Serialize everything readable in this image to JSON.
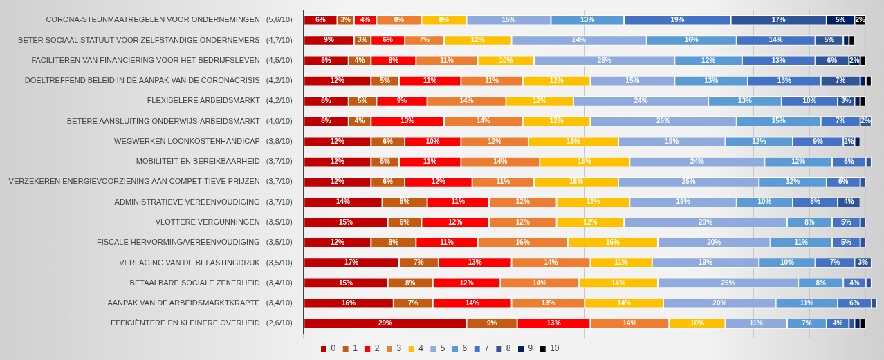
{
  "chart_data": {
    "type": "bar",
    "orientation": "horizontal",
    "stacked": true,
    "categories": [
      "CORONA-STEUNMAATREGELEN VOOR ONDERNEMINGEN   (5,6/10)",
      "BETER SOCIAAL STATUUT VOOR ZELFSTANDIGE ONDERNEMERS   (4,7/10)",
      "FACILITEREN VAN FINANCIERING VOOR HET BEDRIJFSLEVEN   (4,5/10)",
      "DOELTREFFEND BELEID IN DE AANPAK VAN DE CORONACRISIS   (4,2/10)",
      "FLEXIBELERE ARBEIDSMARKT   (4,2/10)",
      "BETERE AANSLUITING ONDERWIJS-ARBEIDSMARKT   (4,0/10)",
      "WEGWERKEN LOONKOSTENHANDICAP   (3,8/10)",
      "MOBILITEIT EN BEREIKBAARHEID   (3,7/10)",
      "VERZEKEREN ENERGIEVOORZIENING AAN COMPETITIEVE PRIJZEN   (3,7/10)",
      "ADMINISTRATIEVE VEREENVOUDIGING   (3,7/10)",
      "VLOTTERE VERGUNNINGEN   (3,5/10)",
      "FISCALE HERVORMING/VEREENVOUDIGING   (3,5/10)",
      "VERLAGING VAN DE BELASTINGDRUK   (3,5/10)",
      "BETAALBARE SOCIALE ZEKERHEID   (3,4/10)",
      "AANPAK VAN DE ARBEIDSMARKTKRAPTE   (3,4/10)",
      "EFFICIËNTERE EN KLEINERE OVERHEID   (2,6/10)"
    ],
    "series": [
      {
        "name": "0",
        "color": "#c00000",
        "values": [
          6,
          9,
          8,
          12,
          8,
          8,
          12,
          12,
          12,
          14,
          15,
          12,
          17,
          15,
          16,
          29
        ],
        "value_labels": [
          "6%",
          "9%",
          "8%",
          "12%",
          "8%",
          "8%",
          "12%",
          "12%",
          "12%",
          "14%",
          "15%",
          "12%",
          "17%",
          "15%",
          "16%",
          "29%"
        ]
      },
      {
        "name": "1",
        "color": "#c55a11",
        "values": [
          3,
          3,
          4,
          5,
          5,
          4,
          6,
          5,
          6,
          8,
          6,
          8,
          7,
          8,
          7,
          9
        ],
        "value_labels": [
          "3%",
          "3%",
          "4%",
          "5%",
          "5%",
          "4%",
          "6%",
          "5%",
          "6%",
          "8%",
          "6%",
          "8%",
          "7%",
          "8%",
          "7%",
          "9%"
        ]
      },
      {
        "name": "2",
        "color": "#ff0000",
        "values": [
          4,
          6,
          8,
          11,
          9,
          13,
          10,
          11,
          12,
          11,
          12,
          11,
          13,
          12,
          14,
          13
        ],
        "value_labels": [
          "4%",
          "6%",
          "8%",
          "11%",
          "9%",
          "13%",
          "10%",
          "11%",
          "12%",
          "11%",
          "12%",
          "11%",
          "13%",
          "12%",
          "14%",
          "13%"
        ]
      },
      {
        "name": "3",
        "color": "#ed7d31",
        "values": [
          8,
          7,
          11,
          11,
          14,
          14,
          12,
          14,
          11,
          12,
          12,
          16,
          14,
          14,
          13,
          14
        ],
        "value_labels": [
          "8%",
          "7%",
          "11%",
          "11%",
          "14%",
          "14%",
          "12%",
          "14%",
          "11%",
          "12%",
          "12%",
          "16%",
          "14%",
          "14%",
          "13%",
          "14%"
        ]
      },
      {
        "name": "4",
        "color": "#ffc000",
        "values": [
          8,
          12,
          10,
          12,
          12,
          12,
          16,
          16,
          15,
          13,
          12,
          16,
          11,
          14,
          14,
          10
        ],
        "value_labels": [
          "8%",
          "12%",
          "10%",
          "12%",
          "12%",
          "12%",
          "16%",
          "16%",
          "15%",
          "13%",
          "12%",
          "16%",
          "11%",
          "14%",
          "14%",
          "10%"
        ]
      },
      {
        "name": "5",
        "color": "#8faadc",
        "values": [
          15,
          24,
          25,
          15,
          24,
          26,
          19,
          24,
          25,
          19,
          29,
          20,
          19,
          25,
          20,
          11
        ],
        "value_labels": [
          "15%",
          "24%",
          "25%",
          "15%",
          "24%",
          "26%",
          "19%",
          "24%",
          "25%",
          "19%",
          "29%",
          "20%",
          "19%",
          "25%",
          "20%",
          "11%"
        ]
      },
      {
        "name": "6",
        "color": "#5b9bd5",
        "values": [
          13,
          16,
          12,
          13,
          13,
          15,
          12,
          12,
          12,
          10,
          8,
          11,
          10,
          8,
          11,
          7
        ],
        "value_labels": [
          "13%",
          "16%",
          "12%",
          "13%",
          "13%",
          "15%",
          "12%",
          "12%",
          "12%",
          "10%",
          "8%",
          "11%",
          "10%",
          "8%",
          "11%",
          "7%"
        ]
      },
      {
        "name": "7",
        "color": "#4472c4",
        "values": [
          19,
          14,
          13,
          13,
          10,
          7,
          9,
          6,
          6,
          8,
          5,
          5,
          7,
          4,
          6,
          4
        ],
        "value_labels": [
          "19%",
          "14%",
          "13%",
          "13%",
          "10%",
          "7%",
          "9%",
          "6%",
          "6%",
          "8%",
          "5%",
          "5%",
          "7%",
          "4%",
          "6%",
          "4%"
        ]
      },
      {
        "name": "8",
        "color": "#2f5597",
        "values": [
          17,
          5,
          6,
          7,
          3,
          2,
          2,
          1,
          1,
          4,
          1,
          1,
          3,
          1,
          1,
          1
        ],
        "value_labels": [
          "17%",
          "5%",
          "6%",
          "7%",
          "3%",
          "2%",
          "2%",
          null,
          null,
          "4%",
          null,
          null,
          "3%",
          null,
          null,
          null
        ]
      },
      {
        "name": "9",
        "color": "#002060",
        "values": [
          5,
          1,
          2,
          1,
          1,
          0,
          1,
          0,
          0,
          0,
          0,
          0,
          0,
          0,
          0,
          1
        ],
        "value_labels": [
          "5%",
          null,
          "2%",
          null,
          null,
          null,
          null,
          null,
          null,
          null,
          null,
          null,
          null,
          null,
          null,
          null
        ]
      },
      {
        "name": "10",
        "color": "#000000",
        "values": [
          2,
          1,
          1,
          1,
          1,
          0,
          0,
          0,
          0,
          0,
          0,
          0,
          0,
          0,
          0,
          1
        ],
        "value_labels": [
          "2%",
          null,
          null,
          null,
          null,
          null,
          null,
          null,
          null,
          null,
          null,
          null,
          null,
          null,
          null,
          null
        ]
      }
    ],
    "xlim": [
      0,
      102
    ],
    "xticks": [
      0,
      10,
      20,
      30,
      40,
      50,
      60,
      70,
      80,
      90,
      100
    ],
    "tick_labels": "y",
    "grid": "x",
    "legend": "bottom"
  }
}
